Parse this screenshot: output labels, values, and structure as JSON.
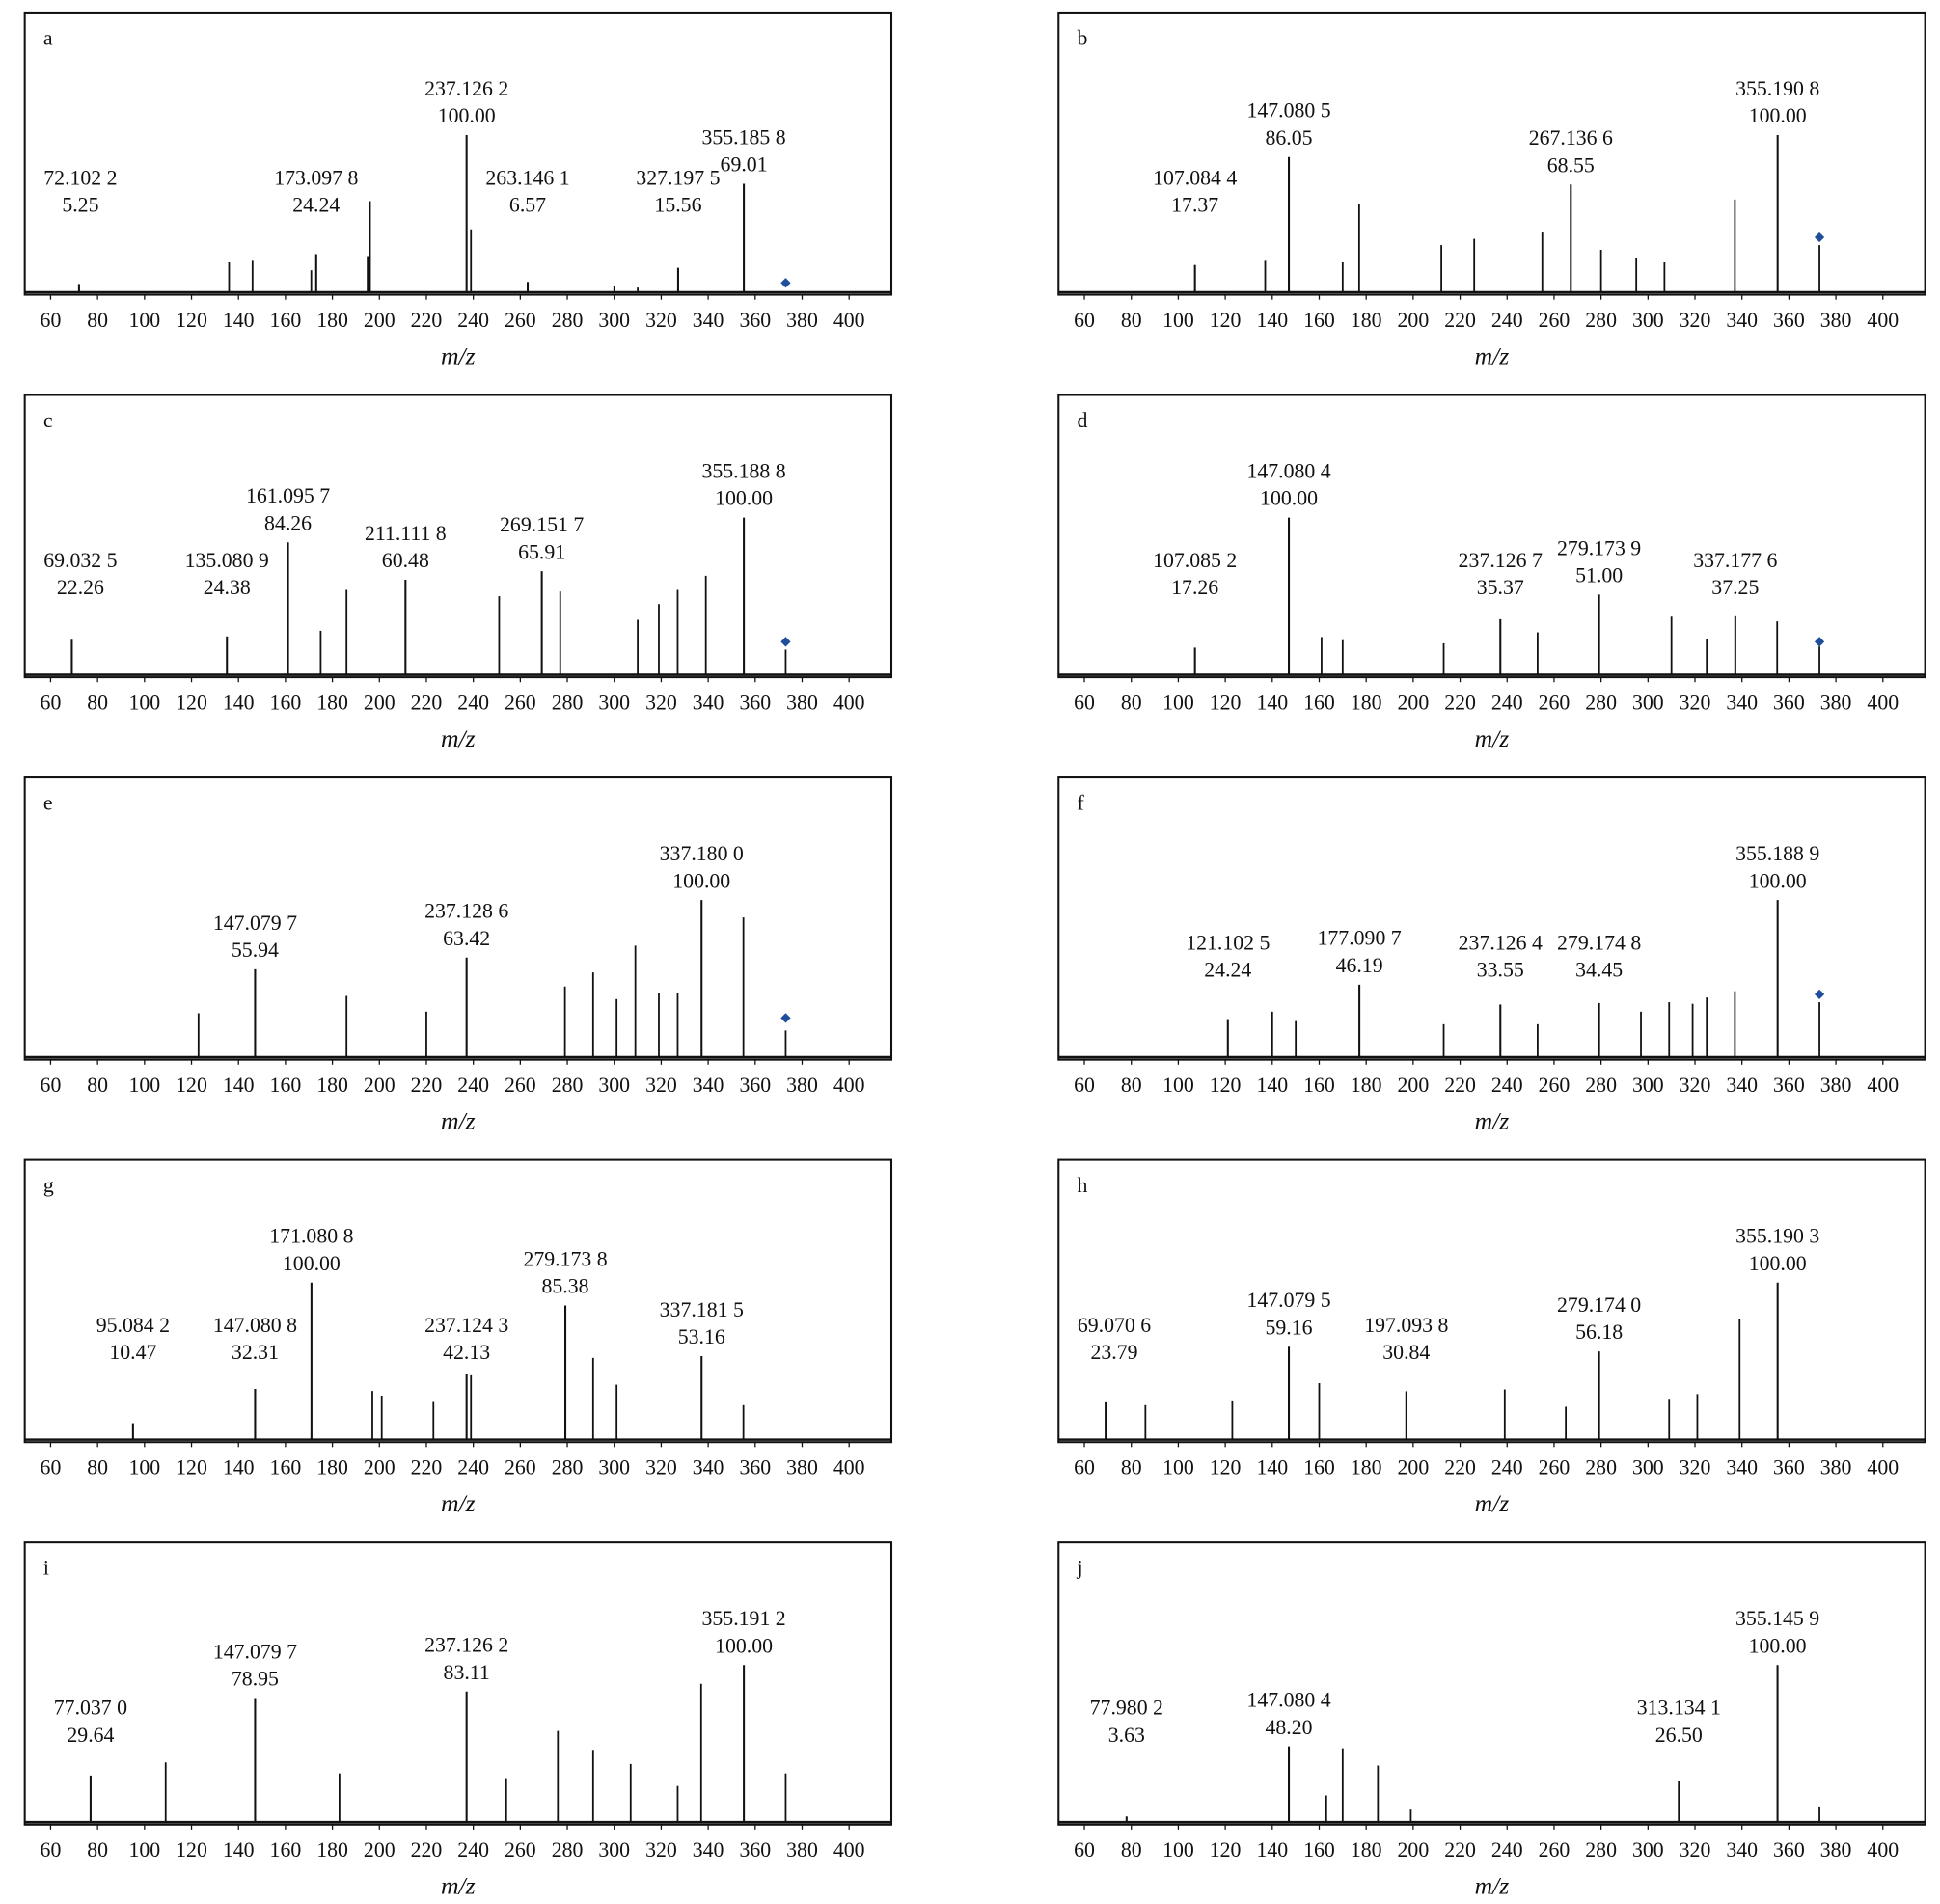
{
  "chart_data": [
    {
      "type": "stem",
      "panel_label": "a",
      "x_label": "m/z",
      "xlim": [
        49,
        418
      ],
      "ylim": [
        0,
        178
      ],
      "xticks": [
        60,
        80,
        100,
        120,
        140,
        160,
        180,
        200,
        220,
        240,
        260,
        280,
        300,
        320,
        340,
        360,
        380,
        400
      ],
      "color": "#111111",
      "labeled_peaks": {
        "x": [
          72.1022,
          173.0978,
          237.1262,
          263.1461,
          327.1975,
          355.1858
        ],
        "x_labels": [
          "72.102 2",
          "173.097 8",
          "237.126 2",
          "263.146 1",
          "327.197 5",
          "355.185 8"
        ],
        "values": [
          5.25,
          24.24,
          100,
          6.57,
          15.56,
          69.01
        ],
        "value_labels": [
          "5.25",
          "24.24",
          "100.00",
          "6.57",
          "15.56",
          "69.01"
        ]
      },
      "peaks": {
        "x": [
          136,
          146,
          171,
          195,
          196,
          239,
          300,
          310
        ],
        "values": [
          19,
          20,
          14,
          23,
          58,
          40,
          4,
          3
        ]
      },
      "precursor": {
        "x": 373,
        "value": 6,
        "color": "#1f4e9c"
      }
    },
    {
      "type": "stem",
      "panel_label": "b",
      "x_label": "m/z",
      "xlim": [
        49,
        418
      ],
      "ylim": [
        0,
        178
      ],
      "xticks": [
        60,
        80,
        100,
        120,
        140,
        160,
        180,
        200,
        220,
        240,
        260,
        280,
        300,
        320,
        340,
        360,
        380,
        400
      ],
      "color": "#111111",
      "labeled_peaks": {
        "x": [
          107.0844,
          147.0805,
          267.1366,
          355.1908
        ],
        "x_labels": [
          "107.084 4",
          "147.080 5",
          "267.136 6",
          "355.190 8"
        ],
        "values": [
          17.37,
          86.05,
          68.55,
          100
        ],
        "value_labels": [
          "17.37",
          "86.05",
          "68.55",
          "100.00"
        ]
      },
      "peaks": {
        "x": [
          137,
          170,
          177,
          212,
          226,
          255,
          280,
          295,
          307,
          337,
          373
        ],
        "values": [
          20,
          19,
          56,
          30,
          34,
          38,
          27,
          22,
          19,
          59,
          30
        ]
      },
      "precursor": {
        "x": 373,
        "value": 35,
        "color": "#1f4e9c"
      }
    },
    {
      "type": "stem",
      "panel_label": "c",
      "x_label": "m/z",
      "xlim": [
        49,
        418
      ],
      "ylim": [
        0,
        178
      ],
      "xticks": [
        60,
        80,
        100,
        120,
        140,
        160,
        180,
        200,
        220,
        240,
        260,
        280,
        300,
        320,
        340,
        360,
        380,
        400
      ],
      "color": "#111111",
      "labeled_peaks": {
        "x": [
          69.0325,
          135.0809,
          161.0957,
          211.1118,
          269.1517,
          355.1888
        ],
        "x_labels": [
          "69.032 5",
          "135.080 9",
          "161.095 7",
          "211.111 8",
          "269.151 7",
          "355.188 8"
        ],
        "values": [
          22.26,
          24.38,
          84.26,
          60.48,
          65.91,
          100
        ],
        "value_labels": [
          "22.26",
          "24.38",
          "84.26",
          "60.48",
          "65.91",
          "100.00"
        ]
      },
      "peaks": {
        "x": [
          175,
          186,
          251,
          277,
          310,
          319,
          327,
          339,
          373
        ],
        "values": [
          28,
          54,
          50,
          53,
          35,
          45,
          54,
          63,
          16
        ]
      },
      "precursor": {
        "x": 373,
        "value": 21,
        "color": "#1f4e9c"
      }
    },
    {
      "type": "stem",
      "panel_label": "d",
      "x_label": "m/z",
      "xlim": [
        49,
        418
      ],
      "ylim": [
        0,
        178
      ],
      "xticks": [
        60,
        80,
        100,
        120,
        140,
        160,
        180,
        200,
        220,
        240,
        260,
        280,
        300,
        320,
        340,
        360,
        380,
        400
      ],
      "color": "#111111",
      "labeled_peaks": {
        "x": [
          107.0852,
          147.0804,
          237.1267,
          279.1739,
          337.1776
        ],
        "x_labels": [
          "107.085 2",
          "147.080 4",
          "237.126 7",
          "279.173 9",
          "337.177 6"
        ],
        "values": [
          17.26,
          100,
          35.37,
          51.0,
          37.25
        ],
        "value_labels": [
          "17.26",
          "100.00",
          "35.37",
          "51.00",
          "37.25"
        ]
      },
      "peaks": {
        "x": [
          161,
          170,
          213,
          253,
          310,
          325,
          355,
          373
        ],
        "values": [
          24,
          22,
          20,
          27,
          37,
          23,
          34,
          18
        ]
      },
      "precursor": {
        "x": 373,
        "value": 21,
        "color": "#1f4e9c"
      }
    },
    {
      "type": "stem",
      "panel_label": "e",
      "x_label": "m/z",
      "xlim": [
        49,
        418
      ],
      "ylim": [
        0,
        178
      ],
      "xticks": [
        60,
        80,
        100,
        120,
        140,
        160,
        180,
        200,
        220,
        240,
        260,
        280,
        300,
        320,
        340,
        360,
        380,
        400
      ],
      "color": "#111111",
      "labeled_peaks": {
        "x": [
          147.0797,
          237.1286,
          337.18
        ],
        "x_labels": [
          "147.079 7",
          "237.128 6",
          "337.180 0"
        ],
        "values": [
          55.94,
          63.42,
          100
        ],
        "value_labels": [
          "55.94",
          "63.42",
          "100.00"
        ]
      },
      "peaks": {
        "x": [
          123,
          186,
          220,
          279,
          291,
          301,
          309,
          319,
          327,
          355,
          373
        ],
        "values": [
          28,
          39,
          29,
          45,
          54,
          37,
          71,
          41,
          41,
          89,
          17
        ]
      },
      "precursor": {
        "x": 373,
        "value": 25,
        "color": "#1f4e9c"
      }
    },
    {
      "type": "stem",
      "panel_label": "f",
      "x_label": "m/z",
      "xlim": [
        49,
        418
      ],
      "ylim": [
        0,
        178
      ],
      "xticks": [
        60,
        80,
        100,
        120,
        140,
        160,
        180,
        200,
        220,
        240,
        260,
        280,
        300,
        320,
        340,
        360,
        380,
        400
      ],
      "color": "#111111",
      "labeled_peaks": {
        "x": [
          121.1025,
          177.0907,
          237.1264,
          279.1748,
          355.1889
        ],
        "x_labels": [
          "121.102 5",
          "177.090 7",
          "237.126 4",
          "279.174 8",
          "355.188 9"
        ],
        "values": [
          24.24,
          46.19,
          33.55,
          34.45,
          100
        ],
        "value_labels": [
          "24.24",
          "46.19",
          "33.55",
          "34.45",
          "100.00"
        ]
      },
      "peaks": {
        "x": [
          140,
          150,
          213,
          253,
          297,
          309,
          319,
          325,
          337,
          373
        ],
        "values": [
          29,
          23,
          21,
          21,
          29,
          35,
          34,
          38,
          42,
          35
        ]
      },
      "precursor": {
        "x": 373,
        "value": 40,
        "color": "#1f4e9c"
      }
    },
    {
      "type": "stem",
      "panel_label": "g",
      "x_label": "m/z",
      "xlim": [
        49,
        418
      ],
      "ylim": [
        0,
        178
      ],
      "xticks": [
        60,
        80,
        100,
        120,
        140,
        160,
        180,
        200,
        220,
        240,
        260,
        280,
        300,
        320,
        340,
        360,
        380,
        400
      ],
      "color": "#111111",
      "labeled_peaks": {
        "x": [
          95.0842,
          147.0808,
          171.0808,
          237.1243,
          279.1738,
          337.1815
        ],
        "x_labels": [
          "95.084 2",
          "147.080 8",
          "171.080 8",
          "237.124 3",
          "279.173 8",
          "337.181 5"
        ],
        "values": [
          10.47,
          32.31,
          100,
          42.13,
          85.38,
          53.16
        ],
        "value_labels": [
          "10.47",
          "32.31",
          "100.00",
          "42.13",
          "85.38",
          "53.16"
        ]
      },
      "peaks": {
        "x": [
          197,
          201,
          223,
          239,
          291,
          301,
          355
        ],
        "values": [
          31,
          28,
          24,
          41,
          52,
          35,
          22
        ]
      }
    },
    {
      "type": "stem",
      "panel_label": "h",
      "x_label": "m/z",
      "xlim": [
        49,
        418
      ],
      "ylim": [
        0,
        178
      ],
      "xticks": [
        60,
        80,
        100,
        120,
        140,
        160,
        180,
        200,
        220,
        240,
        260,
        280,
        300,
        320,
        340,
        360,
        380,
        400
      ],
      "color": "#111111",
      "labeled_peaks": {
        "x": [
          69.0706,
          147.0795,
          197.0938,
          279.174,
          355.1903
        ],
        "x_labels": [
          "69.070 6",
          "147.079 5",
          "197.093 8",
          "279.174 0",
          "355.190 3"
        ],
        "values": [
          23.79,
          59.16,
          30.84,
          56.18,
          100
        ],
        "value_labels": [
          "23.79",
          "59.16",
          "30.84",
          "56.18",
          "100.00"
        ]
      },
      "peaks": {
        "x": [
          86,
          123,
          160,
          239,
          265,
          309,
          321,
          339
        ],
        "values": [
          22,
          25,
          36,
          32,
          21,
          26,
          29,
          77
        ]
      }
    },
    {
      "type": "stem",
      "panel_label": "i",
      "x_label": "m/z",
      "xlim": [
        49,
        418
      ],
      "ylim": [
        0,
        178
      ],
      "xticks": [
        60,
        80,
        100,
        120,
        140,
        160,
        180,
        200,
        220,
        240,
        260,
        280,
        300,
        320,
        340,
        360,
        380,
        400
      ],
      "color": "#111111",
      "labeled_peaks": {
        "x": [
          77.037,
          147.0797,
          237.1262,
          355.1912
        ],
        "x_labels": [
          "77.037 0",
          "147.079 7",
          "237.126 2",
          "355.191 2"
        ],
        "values": [
          29.64,
          78.95,
          83.11,
          100
        ],
        "value_labels": [
          "29.64",
          "78.95",
          "83.11",
          "100.00"
        ]
      },
      "peaks": {
        "x": [
          109,
          183,
          254,
          276,
          291,
          307,
          327,
          337,
          373
        ],
        "values": [
          38,
          31,
          28,
          58,
          46,
          37,
          23,
          88,
          31
        ]
      }
    },
    {
      "type": "stem",
      "panel_label": "j",
      "x_label": "m/z",
      "xlim": [
        49,
        418
      ],
      "ylim": [
        0,
        178
      ],
      "xticks": [
        60,
        80,
        100,
        120,
        140,
        160,
        180,
        200,
        220,
        240,
        260,
        280,
        300,
        320,
        340,
        360,
        380,
        400
      ],
      "color": "#111111",
      "labeled_peaks": {
        "x": [
          77.9802,
          147.0804,
          313.1341,
          355.1459
        ],
        "x_labels": [
          "77.980 2",
          "147.080 4",
          "313.134 1",
          "355.145 9"
        ],
        "values": [
          3.63,
          48.2,
          26.5,
          100
        ],
        "value_labels": [
          "3.63",
          "48.20",
          "26.50",
          "100.00"
        ]
      },
      "peaks": {
        "x": [
          163,
          170,
          185,
          199,
          373
        ],
        "values": [
          17,
          47,
          36,
          8,
          10
        ]
      }
    }
  ]
}
